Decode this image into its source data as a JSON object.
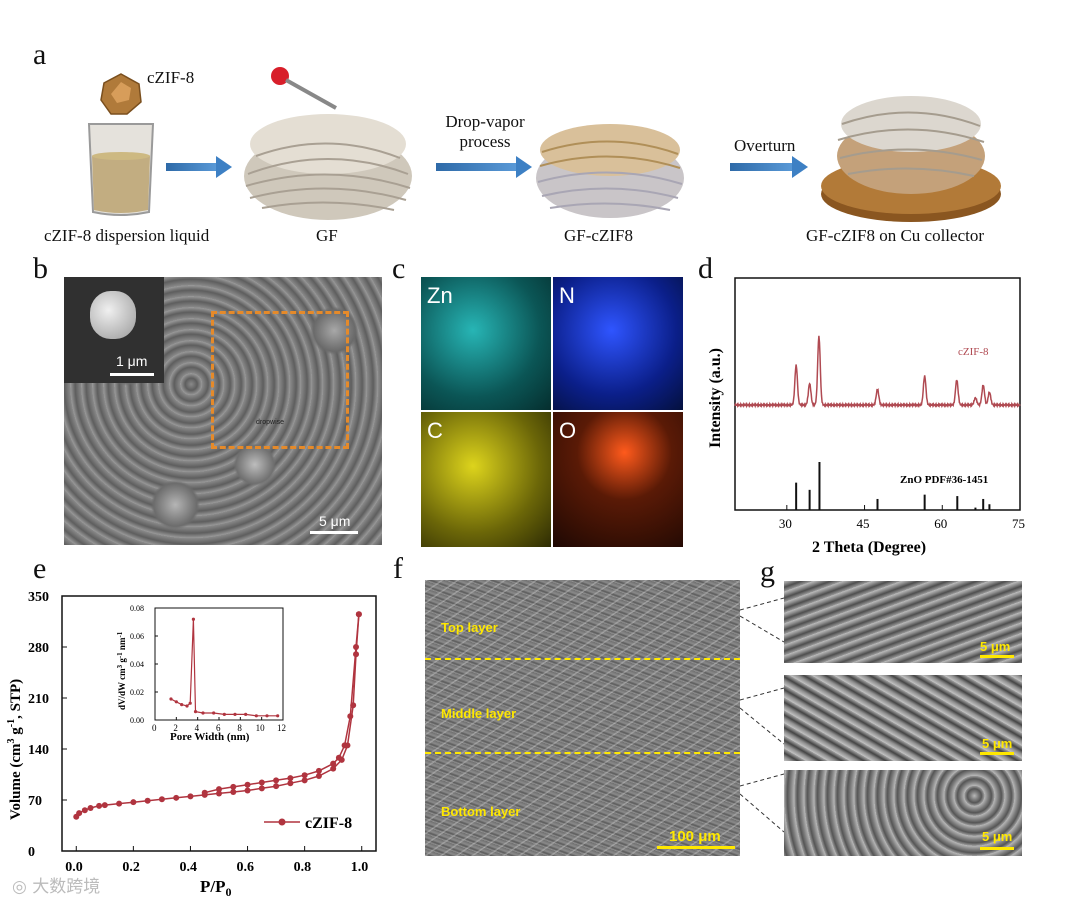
{
  "panels": {
    "a": "a",
    "b": "b",
    "c": "c",
    "d": "d",
    "e": "e",
    "f": "f",
    "g": "g"
  },
  "panel_a": {
    "particle_label": "cZIF-8",
    "arrow1_label_line1": "Drop-vapor",
    "arrow1_label_line2": "process",
    "arrow2_label": "Overturn",
    "captions": [
      "cZIF-8 dispersion liquid",
      "GF",
      "GF-cZIF8",
      "GF-cZIF8 on Cu collector"
    ]
  },
  "panel_b": {
    "inset_scale": "1 μm",
    "main_scale": "5 μm",
    "small_text": "dropwise"
  },
  "panel_c": {
    "maps": [
      {
        "label": "Zn",
        "color": "#1aa8a8"
      },
      {
        "label": "N",
        "color": "#1f3fd0"
      },
      {
        "label": "C",
        "color": "#c9c21a"
      },
      {
        "label": "O",
        "color": "#c8420f"
      }
    ]
  },
  "panel_f": {
    "layers": [
      "Top layer",
      "Middle layer",
      "Bottom layer"
    ],
    "scale": "100 μm"
  },
  "panel_g": {
    "scales": [
      "5 μm",
      "5 μm",
      "5 μm"
    ]
  },
  "chart_data": [
    {
      "id": "d",
      "type": "line",
      "xlabel": "2 Theta (Degree)",
      "ylabel": "Intensity (a.u.)",
      "xlim": [
        20,
        75
      ],
      "xticks": [
        30,
        45,
        60,
        75
      ],
      "series": [
        {
          "name": "cZIF-8",
          "color": "#b04a52",
          "peaks": [
            [
              31.8,
              0.55
            ],
            [
              34.4,
              0.3
            ],
            [
              36.2,
              0.95
            ],
            [
              47.5,
              0.22
            ],
            [
              56.6,
              0.4
            ],
            [
              62.8,
              0.35
            ],
            [
              66.4,
              0.1
            ],
            [
              67.9,
              0.28
            ],
            [
              69.1,
              0.18
            ]
          ]
        },
        {
          "name": "ZnO PDF#36-1451",
          "color": "#111111",
          "sticks": [
            [
              31.8,
              0.57
            ],
            [
              34.4,
              0.42
            ],
            [
              36.3,
              1.0
            ],
            [
              47.5,
              0.23
            ],
            [
              56.6,
              0.32
            ],
            [
              62.9,
              0.29
            ],
            [
              66.4,
              0.05
            ],
            [
              67.9,
              0.23
            ],
            [
              69.1,
              0.12
            ]
          ]
        }
      ]
    },
    {
      "id": "e",
      "type": "line",
      "xlabel": "P/P0",
      "ylabel": "Volume (cm3 g-1, STP)",
      "xlim": [
        -0.05,
        1.05
      ],
      "ylim": [
        0,
        350
      ],
      "xticks": [
        0.0,
        0.2,
        0.4,
        0.6,
        0.8,
        1.0
      ],
      "yticks": [
        0,
        70,
        140,
        210,
        280,
        350
      ],
      "series": [
        {
          "name": "cZIF-8",
          "color": "#b0343f",
          "adsorption": [
            [
              0.0,
              47
            ],
            [
              0.01,
              52
            ],
            [
              0.03,
              56
            ],
            [
              0.05,
              59
            ],
            [
              0.08,
              62
            ],
            [
              0.1,
              63
            ],
            [
              0.15,
              65
            ],
            [
              0.2,
              67
            ],
            [
              0.25,
              69
            ],
            [
              0.3,
              71
            ],
            [
              0.35,
              73
            ],
            [
              0.4,
              75
            ],
            [
              0.45,
              77
            ],
            [
              0.5,
              79
            ],
            [
              0.55,
              81
            ],
            [
              0.6,
              83
            ],
            [
              0.65,
              86
            ],
            [
              0.7,
              89
            ],
            [
              0.75,
              93
            ],
            [
              0.8,
              97
            ],
            [
              0.85,
              103
            ],
            [
              0.9,
              113
            ],
            [
              0.93,
              125
            ],
            [
              0.95,
              145
            ],
            [
              0.97,
              200
            ],
            [
              0.98,
              270
            ],
            [
              0.99,
              325
            ]
          ],
          "desorption": [
            [
              0.99,
              325
            ],
            [
              0.98,
              280
            ],
            [
              0.96,
              185
            ],
            [
              0.94,
              145
            ],
            [
              0.92,
              128
            ],
            [
              0.9,
              120
            ],
            [
              0.85,
              110
            ],
            [
              0.8,
              104
            ],
            [
              0.75,
              100
            ],
            [
              0.7,
              97
            ],
            [
              0.65,
              94
            ],
            [
              0.6,
              91
            ],
            [
              0.55,
              88
            ],
            [
              0.5,
              85
            ],
            [
              0.45,
              80
            ]
          ]
        }
      ],
      "inset": {
        "xlabel": "Pore Width (nm)",
        "ylabel": "dV/dW cm3 g-1 nm-1",
        "xlim": [
          0,
          12
        ],
        "ylim": [
          0,
          0.08
        ],
        "xticks": [
          0,
          2,
          4,
          6,
          8,
          10,
          12
        ],
        "yticks": [
          0.0,
          0.02,
          0.04,
          0.06,
          0.08
        ],
        "points": [
          [
            1.5,
            0.015
          ],
          [
            2.0,
            0.013
          ],
          [
            2.5,
            0.011
          ],
          [
            3.0,
            0.01
          ],
          [
            3.3,
            0.012
          ],
          [
            3.6,
            0.072
          ],
          [
            3.8,
            0.006
          ],
          [
            4.5,
            0.005
          ],
          [
            5.5,
            0.005
          ],
          [
            6.5,
            0.004
          ],
          [
            7.5,
            0.004
          ],
          [
            8.5,
            0.004
          ],
          [
            9.5,
            0.003
          ],
          [
            10.5,
            0.003
          ],
          [
            11.5,
            0.003
          ]
        ]
      }
    }
  ],
  "axis_titles": {
    "d_xlabel": "2 Theta (Degree)",
    "d_ylabel": "Intensity (a.u.)",
    "e_xlabel_main": "P/P",
    "e_xlabel_sub": "0",
    "e_ylabel": "Volume (cm",
    "e_inset_xlabel": "Pore Width (nm)"
  },
  "watermark": "大数跨境",
  "colors": {
    "arrow": "#3d80c4",
    "nest": "#d8d0c4",
    "cu": "#a0692a"
  }
}
